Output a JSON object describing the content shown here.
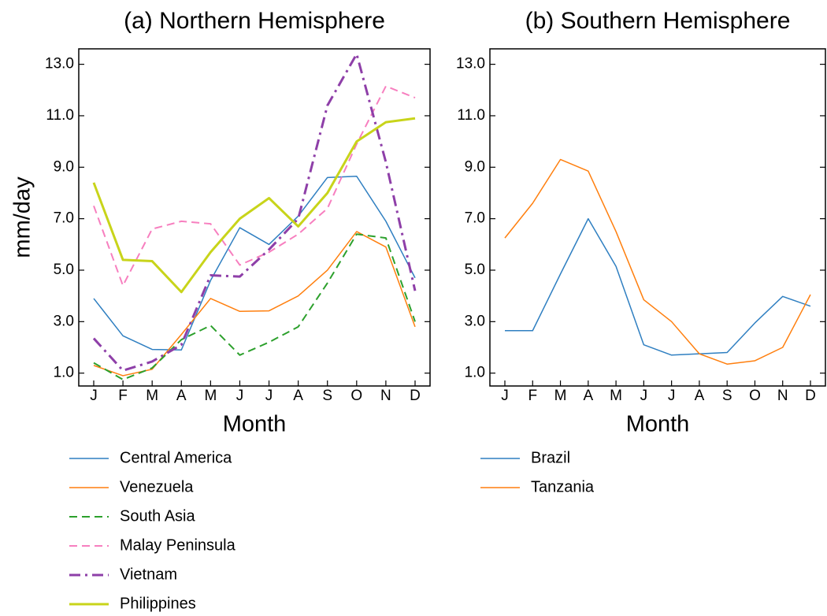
{
  "chart_data": [
    {
      "type": "line",
      "title": "(a) Northern Hemisphere",
      "x_label": "Month",
      "y_label": "mm/day",
      "categories": [
        "J",
        "F",
        "M",
        "A",
        "M",
        "J",
        "J",
        "A",
        "S",
        "O",
        "N",
        "D"
      ],
      "ylim": [
        0.5,
        13.6
      ],
      "yticks": [
        {
          "value": 1,
          "label": "1.0"
        },
        {
          "value": 3,
          "label": "3.0"
        },
        {
          "value": 5,
          "label": "5.0"
        },
        {
          "value": 7,
          "label": "7.0"
        },
        {
          "value": 9,
          "label": "9.0"
        },
        {
          "value": 11,
          "label": "11.0"
        },
        {
          "value": 13,
          "label": "13.0"
        }
      ],
      "series": [
        {
          "name": "Central America",
          "color": "#2f7fc1",
          "style": "solid",
          "linewidth": 1.5,
          "values": [
            3.9,
            2.45,
            1.92,
            1.9,
            4.6,
            6.65,
            6.0,
            7.1,
            8.6,
            8.65,
            6.9,
            4.7
          ]
        },
        {
          "name": "Venezuela",
          "color": "#ff7f0e",
          "style": "solid",
          "linewidth": 1.5,
          "values": [
            1.3,
            0.9,
            1.15,
            2.5,
            3.9,
            3.4,
            3.42,
            4.0,
            5.0,
            6.5,
            5.9,
            2.8
          ]
        },
        {
          "name": "South Asia",
          "color": "#2ca02c",
          "style": "dashed",
          "linewidth": 2,
          "values": [
            1.4,
            0.75,
            1.2,
            2.3,
            2.85,
            1.7,
            2.2,
            2.8,
            4.5,
            6.4,
            6.25,
            3.0
          ]
        },
        {
          "name": "Malay Peninsula",
          "color": "#f77fbf",
          "style": "dashed",
          "linewidth": 2,
          "values": [
            7.5,
            4.4,
            6.6,
            6.9,
            6.8,
            5.2,
            5.7,
            6.4,
            7.4,
            9.9,
            12.15,
            11.7
          ]
        },
        {
          "name": "Vietnam",
          "color": "#8e3fa8",
          "style": "dashdot",
          "linewidth": 3,
          "values": [
            2.35,
            1.1,
            1.45,
            2.1,
            4.8,
            4.75,
            5.8,
            7.0,
            11.4,
            13.4,
            9.2,
            4.2
          ]
        },
        {
          "name": "Philippines",
          "color": "#c8d41a",
          "style": "solid",
          "linewidth": 3,
          "values": [
            8.4,
            5.4,
            5.35,
            4.15,
            5.7,
            7.0,
            7.8,
            6.7,
            8.0,
            10.0,
            10.75,
            10.9
          ]
        }
      ]
    },
    {
      "type": "line",
      "title": "(b) Southern Hemisphere",
      "x_label": "Month",
      "categories": [
        "J",
        "F",
        "M",
        "A",
        "M",
        "J",
        "J",
        "A",
        "S",
        "O",
        "N",
        "D"
      ],
      "ylim": [
        0.5,
        13.6
      ],
      "yticks": [
        {
          "value": 1,
          "label": "1.0"
        },
        {
          "value": 3,
          "label": "3.0"
        },
        {
          "value": 5,
          "label": "5.0"
        },
        {
          "value": 7,
          "label": "7.0"
        },
        {
          "value": 9,
          "label": "9.0"
        },
        {
          "value": 11,
          "label": "11.0"
        },
        {
          "value": 13,
          "label": "13.0"
        }
      ],
      "series": [
        {
          "name": "Brazil",
          "color": "#2f7fc1",
          "style": "solid",
          "linewidth": 1.5,
          "values": [
            2.65,
            2.65,
            4.85,
            7.0,
            5.15,
            2.1,
            1.7,
            1.75,
            1.8,
            2.95,
            3.98,
            3.6
          ]
        },
        {
          "name": "Tanzania",
          "color": "#ff7f0e",
          "style": "solid",
          "linewidth": 1.5,
          "values": [
            6.25,
            7.6,
            9.3,
            8.85,
            6.5,
            3.85,
            3.0,
            1.75,
            1.35,
            1.48,
            2.0,
            4.05
          ]
        }
      ]
    }
  ]
}
